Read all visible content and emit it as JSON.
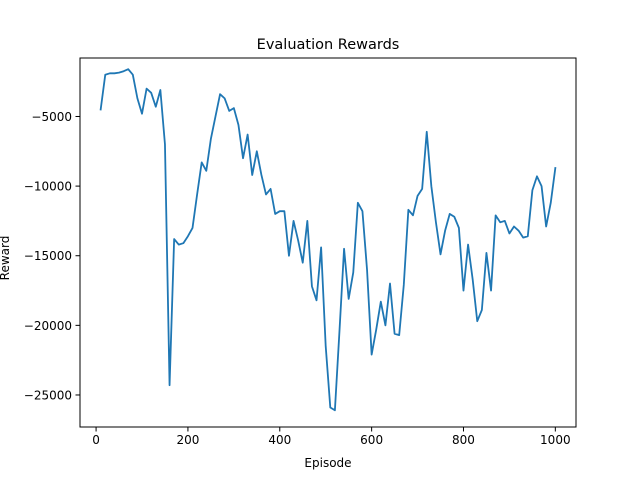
{
  "chart_data": {
    "type": "line",
    "title": "Evaluation Rewards",
    "xlabel": "Episode",
    "ylabel": "Reward",
    "xlim": [
      -35,
      1045
    ],
    "ylim": [
      -27300,
      -800
    ],
    "xticks": [
      0,
      200,
      400,
      600,
      800,
      1000
    ],
    "yticks": [
      -25000,
      -20000,
      -15000,
      -10000,
      -5000
    ],
    "xtick_labels": [
      "0",
      "200",
      "400",
      "600",
      "800",
      "1000"
    ],
    "ytick_labels": [
      "−25000",
      "−20000",
      "−15000",
      "−10000",
      "−5000"
    ],
    "grid": false,
    "series": [
      {
        "color": "#1f77b4",
        "x": [
          10,
          20,
          30,
          40,
          50,
          60,
          70,
          80,
          90,
          100,
          110,
          120,
          130,
          140,
          150,
          160,
          170,
          180,
          190,
          200,
          210,
          220,
          230,
          240,
          250,
          260,
          270,
          280,
          290,
          300,
          310,
          320,
          330,
          340,
          350,
          360,
          370,
          380,
          390,
          400,
          410,
          420,
          430,
          440,
          450,
          460,
          470,
          480,
          490,
          500,
          510,
          520,
          530,
          540,
          550,
          560,
          570,
          580,
          590,
          600,
          610,
          620,
          630,
          640,
          650,
          660,
          670,
          680,
          690,
          700,
          710,
          720,
          730,
          740,
          750,
          760,
          770,
          780,
          790,
          800,
          810,
          820,
          830,
          840,
          850,
          860,
          870,
          880,
          890,
          900,
          910,
          920,
          930,
          940,
          950,
          960,
          970,
          980,
          990,
          1000
        ],
        "y": [
          -4500,
          -2000,
          -1900,
          -1900,
          -1850,
          -1750,
          -1600,
          -2000,
          -3700,
          -4800,
          -3000,
          -3300,
          -4300,
          -3100,
          -7000,
          -24300,
          -13800,
          -14200,
          -14100,
          -13600,
          -13000,
          -10600,
          -8300,
          -8900,
          -6600,
          -5000,
          -3400,
          -3700,
          -4600,
          -4400,
          -5600,
          -8000,
          -6300,
          -9200,
          -7500,
          -9200,
          -10600,
          -10200,
          -12000,
          -11800,
          -11800,
          -15000,
          -12500,
          -13900,
          -15500,
          -12500,
          -17200,
          -18200,
          -14400,
          -21500,
          -25900,
          -26100,
          -20400,
          -14500,
          -18100,
          -16200,
          -11200,
          -11800,
          -16000,
          -22100,
          -20300,
          -18300,
          -20000,
          -17000,
          -20600,
          -20700,
          -17100,
          -11700,
          -12100,
          -10700,
          -10200,
          -6100,
          -10000,
          -12600,
          -14900,
          -13200,
          -12000,
          -12200,
          -13000,
          -17500,
          -14200,
          -16700,
          -19700,
          -18900,
          -14800,
          -17500,
          -12100,
          -12600,
          -12500,
          -13400,
          -12900,
          -13200,
          -13700,
          -13600,
          -10300,
          -9300,
          -10000,
          -12900,
          -11200,
          -8700
        ]
      }
    ]
  }
}
